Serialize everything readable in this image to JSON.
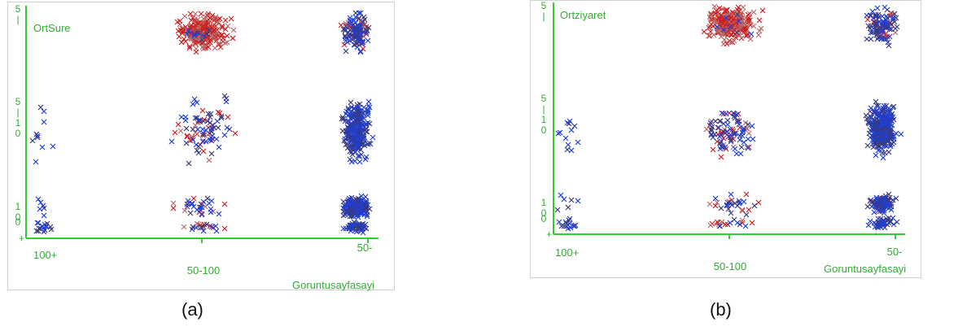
{
  "colors": {
    "axis": "#33cc33",
    "text": "#33aa33",
    "series_red": "#cc2222",
    "series_red_light": "#b86a6a",
    "series_blue": "#1f3fd6",
    "series_navy": "#3a3a7a"
  },
  "chart_data": [
    {
      "type": "scatter",
      "title": "",
      "caption": "(a)",
      "ylabel": "OrtSure",
      "xlabel": "Goruntusayfasayi",
      "x_categories": [
        "100+",
        "50-100",
        "50-"
      ],
      "y_categories": [
        "0",
        "10",
        "510",
        "5 |"
      ],
      "y_tick_glyphs": [
        "0",
        "1\n0",
        "5\n|\n1\n0",
        "5\n|"
      ],
      "grid": false,
      "marker": "x",
      "series": [
        {
          "color": "red",
          "clusters": [
            {
              "x": "50-100",
              "y": "5 |",
              "count": 210
            },
            {
              "x": "50-100",
              "y": "510",
              "count": 30
            },
            {
              "x": "50-100",
              "y": "10",
              "count": 12
            },
            {
              "x": "50-100",
              "y": "0",
              "count": 10
            },
            {
              "x": "50-",
              "y": "5 |",
              "count": 40
            }
          ]
        },
        {
          "color": "blue",
          "clusters": [
            {
              "x": "100+",
              "y": "510",
              "count": 10
            },
            {
              "x": "100+",
              "y": "10",
              "count": 6
            },
            {
              "x": "100+",
              "y": "0",
              "count": 18
            },
            {
              "x": "50-100",
              "y": "5 |",
              "count": 10
            },
            {
              "x": "50-100",
              "y": "510",
              "count": 55
            },
            {
              "x": "50-100",
              "y": "10",
              "count": 20
            },
            {
              "x": "50-100",
              "y": "0",
              "count": 10
            },
            {
              "x": "50-",
              "y": "5 |",
              "count": 90
            },
            {
              "x": "50-",
              "y": "510",
              "count": 260
            },
            {
              "x": "50-",
              "y": "10",
              "count": 200
            },
            {
              "x": "50-",
              "y": "0",
              "count": 60
            }
          ]
        }
      ]
    },
    {
      "type": "scatter",
      "title": "",
      "caption": "(b)",
      "ylabel": "Ortziyaret",
      "xlabel": "Goruntusayfasayi",
      "x_categories": [
        "100+",
        "50-100",
        "50-"
      ],
      "y_categories": [
        "0",
        "10",
        "510",
        "5 |"
      ],
      "y_tick_glyphs": [
        "0",
        "1\n0",
        "5\n|\n1\n0",
        "5\n|"
      ],
      "grid": false,
      "marker": "x",
      "series": [
        {
          "color": "red",
          "clusters": [
            {
              "x": "50-100",
              "y": "5 |",
              "count": 230
            },
            {
              "x": "50-100",
              "y": "510",
              "count": 35
            },
            {
              "x": "50-100",
              "y": "10",
              "count": 10
            },
            {
              "x": "50-100",
              "y": "0",
              "count": 12
            },
            {
              "x": "50-",
              "y": "5 |",
              "count": 30
            },
            {
              "x": "50-",
              "y": "10",
              "count": 6
            }
          ]
        },
        {
          "color": "blue",
          "clusters": [
            {
              "x": "100+",
              "y": "510",
              "count": 12
            },
            {
              "x": "100+",
              "y": "10",
              "count": 6
            },
            {
              "x": "100+",
              "y": "0",
              "count": 14
            },
            {
              "x": "50-100",
              "y": "5 |",
              "count": 8
            },
            {
              "x": "50-100",
              "y": "510",
              "count": 60
            },
            {
              "x": "50-100",
              "y": "10",
              "count": 18
            },
            {
              "x": "50-100",
              "y": "0",
              "count": 6
            },
            {
              "x": "50-",
              "y": "5 |",
              "count": 80
            },
            {
              "x": "50-",
              "y": "510",
              "count": 300
            },
            {
              "x": "50-",
              "y": "10",
              "count": 80
            },
            {
              "x": "50-",
              "y": "0",
              "count": 40
            }
          ]
        }
      ]
    }
  ]
}
